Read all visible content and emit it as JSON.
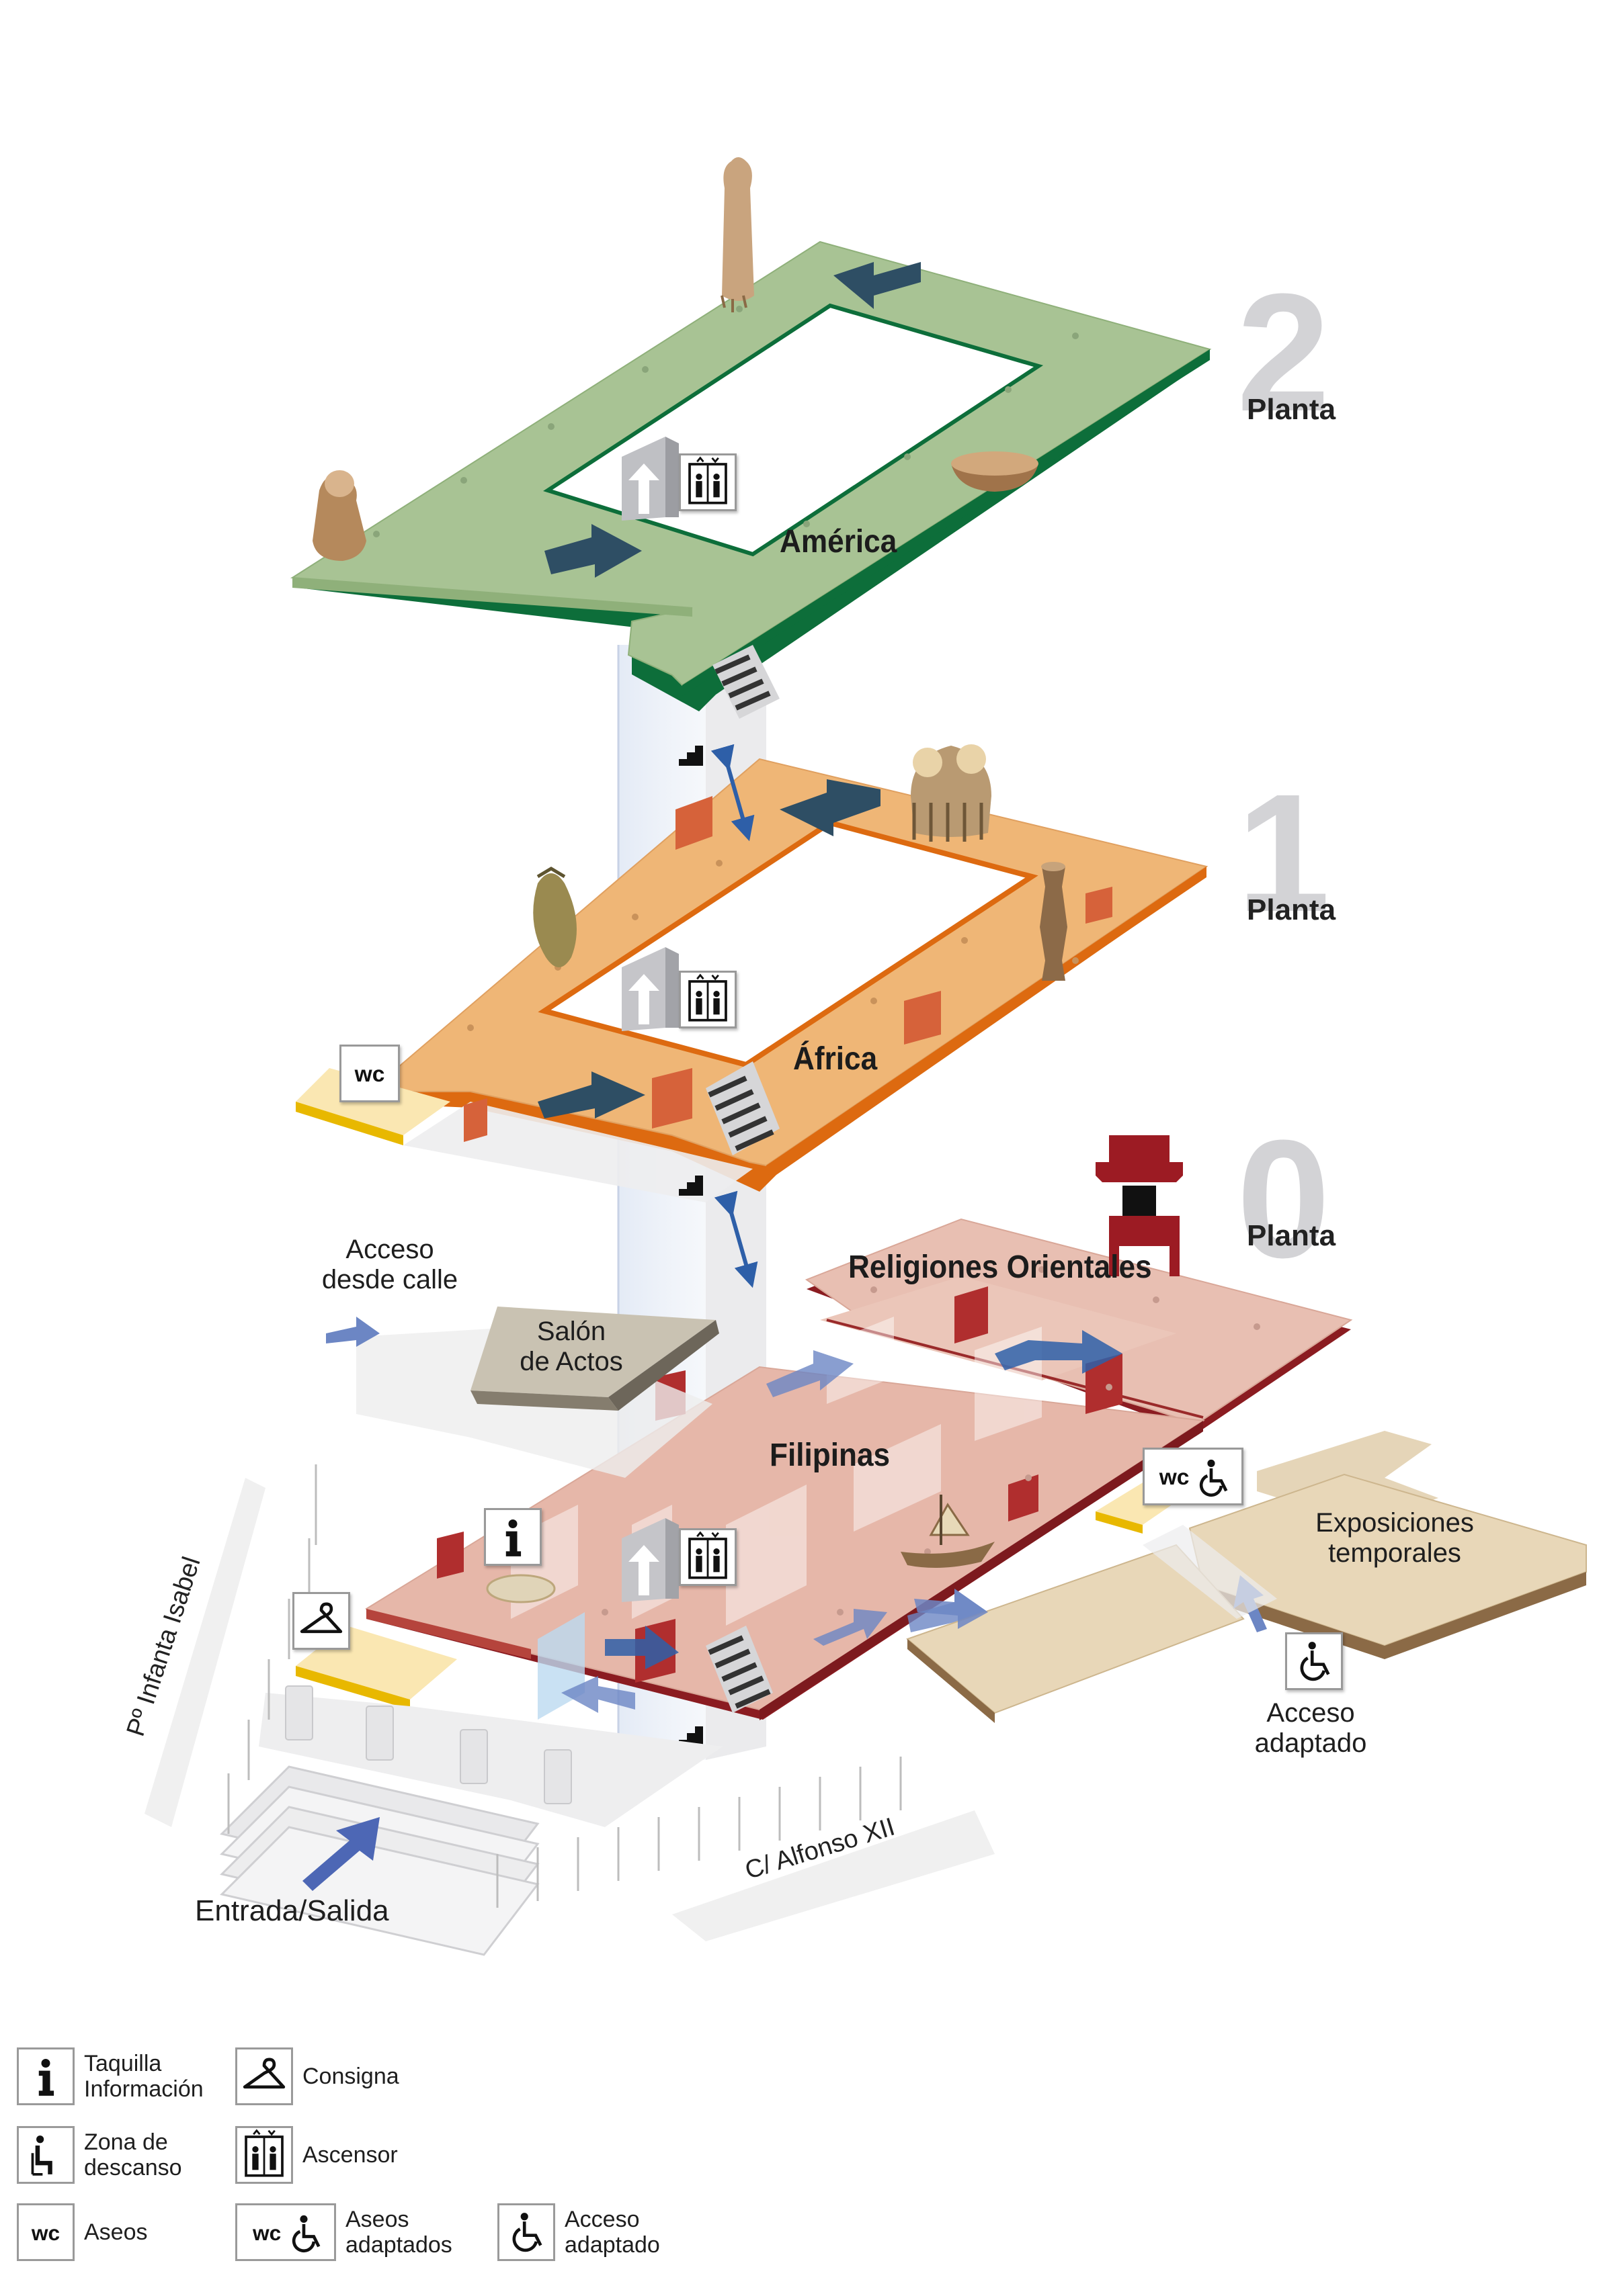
{
  "floors": [
    {
      "id": "planta-2",
      "number": "2",
      "label": "Planta",
      "zone": "América",
      "color": "#a8c394",
      "edge": "#0d6e3a"
    },
    {
      "id": "planta-1",
      "number": "1",
      "label": "Planta",
      "zone": "África",
      "color": "#efb676",
      "edge": "#dd6a10"
    },
    {
      "id": "planta-0",
      "number": "0",
      "label": "Planta",
      "zones": [
        "Religiones Orientales",
        "Filipinas"
      ],
      "color": "#e6b7a9",
      "edge": "#8b1c21"
    }
  ],
  "rooms": {
    "salon": "Salón\nde Actos",
    "exposiciones": "Exposiciones\ntemporales"
  },
  "labels": {
    "acceso_calle": "Acceso\ndesde calle",
    "acceso_adaptado": "Acceso\nadaptado",
    "entrada": "Entrada/Salida",
    "street_left": "Pº Infanta Isabel",
    "street_bottom": "C/ Alfonso XII"
  },
  "legend": [
    {
      "icon": "info-icon",
      "label": "Taquilla\nInformación"
    },
    {
      "icon": "hanger-icon",
      "label": "Consigna"
    },
    {
      "icon": "rest-seat-icon",
      "label": "Zona de\ndescanso"
    },
    {
      "icon": "elevator-icon",
      "label": "Ascensor"
    },
    {
      "icon": "wc-icon",
      "label": "Aseos"
    },
    {
      "icon": "wc-accessible-icon",
      "label": "Aseos\nadaptados"
    },
    {
      "icon": "wheelchair-icon",
      "label": "Acceso\nadaptado"
    }
  ],
  "icon_text": {
    "wc": "wc"
  },
  "colors": {
    "arrow_dark": "#2e4e64",
    "arrow_blue": "#5b74b8",
    "wall_red": "#c24a2a",
    "ground": "#dfcdb0"
  }
}
